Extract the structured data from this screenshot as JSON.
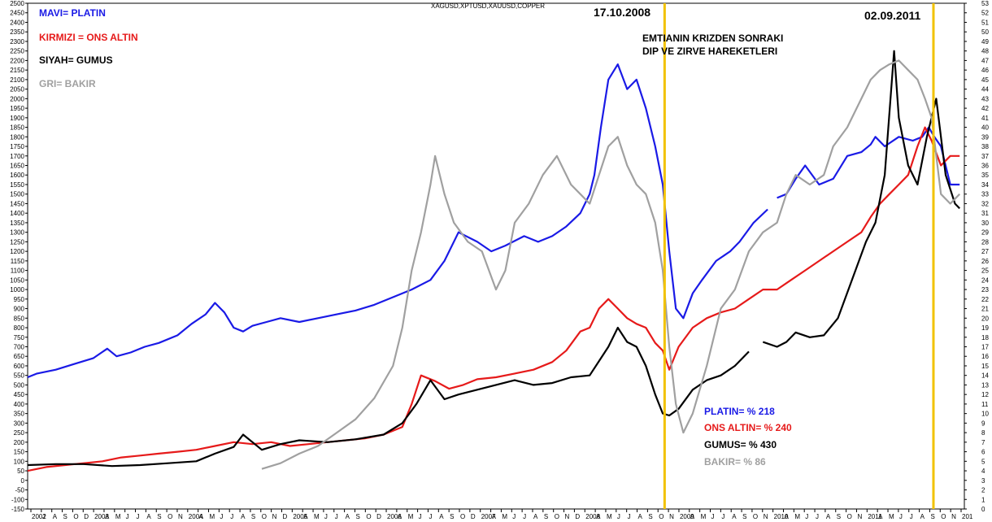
{
  "chart_data": {
    "type": "line",
    "title": "XAGUSD,XPTUSD,XAUUSD,COPPER",
    "annotations": {
      "date1": "17.10.2008",
      "date2": "02.09.2011",
      "headline_1": "EMTIANIN KRIZDEN SONRAKI",
      "headline_2": "DIP VE ZIRVE HAREKETLERI"
    },
    "legend": [
      {
        "text": "MAVI= PLATIN",
        "color": "#1a1ae6"
      },
      {
        "text": "KIRMIZI = ONS ALTIN",
        "color": "#e61a1a"
      },
      {
        "text": "SIYAH= GUMUS",
        "color": "#000000"
      },
      {
        "text": "GRI= BAKIR",
        "color": "#a0a0a0"
      }
    ],
    "performance": [
      {
        "text": "PLATIN= % 218",
        "color": "#1a1ae6"
      },
      {
        "text": "ONS ALTIN= % 240",
        "color": "#e61a1a"
      },
      {
        "text": "GUMUS= % 430",
        "color": "#000000"
      },
      {
        "text": "BAKIR= % 86",
        "color": "#a0a0a0"
      }
    ],
    "left_axis": {
      "min": -150,
      "max": 2500,
      "step": 50
    },
    "right_axis": {
      "min": 0,
      "max": 53,
      "step": 1
    },
    "x_labels": [
      "2002",
      "J",
      "A",
      "S",
      "O",
      "D",
      "2003",
      "A",
      "M",
      "J",
      "J",
      "A",
      "S",
      "O",
      "N",
      "2004",
      "A",
      "M",
      "J",
      "J",
      "A",
      "S",
      "O",
      "N",
      "D",
      "2005",
      "A",
      "M",
      "J",
      "J",
      "A",
      "S",
      "O",
      "D",
      "2006",
      "A",
      "M",
      "J",
      "J",
      "A",
      "S",
      "O",
      "D",
      "2007",
      "A",
      "M",
      "J",
      "J",
      "A",
      "S",
      "O",
      "N",
      "D",
      "2008",
      "A",
      "M",
      "J",
      "J",
      "A",
      "S",
      "O",
      "N",
      "2009",
      "A",
      "M",
      "J",
      "J",
      "A",
      "S",
      "O",
      "N",
      "2010",
      "A",
      "M",
      "J",
      "J",
      "A",
      "S",
      "O",
      "N",
      "2011",
      "A",
      "M",
      "J",
      "J",
      "A",
      "S",
      "O",
      "N",
      "201"
    ],
    "x_range": [
      2002.0,
      2012.0
    ],
    "series": [
      {
        "name": "MAVI= PLATIN",
        "color": "#1a1ae6",
        "axis": "left",
        "x": [
          2002.0,
          2002.1,
          2002.3,
          2002.5,
          2002.7,
          2002.85,
          2002.95,
          2003.1,
          2003.25,
          2003.4,
          2003.6,
          2003.75,
          2003.9,
          2004.0,
          2004.1,
          2004.2,
          2004.3,
          2004.4,
          2004.55,
          2004.7,
          2004.9,
          2005.1,
          2005.3,
          2005.5,
          2005.7,
          2005.9,
          2006.1,
          2006.3,
          2006.45,
          2006.6,
          2006.8,
          2006.95,
          2007.1,
          2007.3,
          2007.45,
          2007.6,
          2007.75,
          2007.9,
          2008.0,
          2008.05,
          2008.12,
          2008.2,
          2008.3,
          2008.4,
          2008.5,
          2008.6,
          2008.7,
          2008.78,
          2008.85,
          2008.92,
          2009.0,
          2009.1,
          2009.2,
          2009.35,
          2009.5,
          2009.6,
          2009.75,
          2009.9,
          2010.0,
          2010.1,
          2010.2,
          2010.3,
          2010.45,
          2010.6,
          2010.75,
          2010.9,
          2011.0,
          2011.05,
          2011.15,
          2011.3,
          2011.45,
          2011.55,
          2011.62,
          2011.68,
          2011.75,
          2011.85,
          2011.95
        ],
        "y": [
          540,
          560,
          580,
          610,
          640,
          690,
          650,
          670,
          700,
          720,
          760,
          820,
          870,
          930,
          880,
          800,
          780,
          810,
          830,
          850,
          830,
          850,
          870,
          890,
          920,
          960,
          1000,
          1050,
          1150,
          1300,
          1250,
          1200,
          1230,
          1280,
          1250,
          1280,
          1330,
          1400,
          1500,
          1600,
          1850,
          2100,
          2180,
          2050,
          2100,
          1950,
          1750,
          1550,
          1200,
          900,
          850,
          980,
          1050,
          1150,
          1200,
          1250,
          1350,
          1420,
          1480,
          1500,
          1580,
          1650,
          1550,
          1580,
          1700,
          1720,
          1760,
          1800,
          1750,
          1800,
          1780,
          1800,
          1850,
          1800,
          1750,
          1550,
          1550
        ],
        "gaps": [
          58
        ]
      },
      {
        "name": "KIRMIZI = ONS ALTIN",
        "color": "#e61a1a",
        "axis": "left",
        "x": [
          2002.0,
          2002.2,
          2002.4,
          2002.6,
          2002.8,
          2003.0,
          2003.2,
          2003.4,
          2003.6,
          2003.8,
          2004.0,
          2004.2,
          2004.4,
          2004.6,
          2004.8,
          2005.0,
          2005.2,
          2005.4,
          2005.6,
          2005.8,
          2006.0,
          2006.1,
          2006.2,
          2006.35,
          2006.5,
          2006.65,
          2006.8,
          2007.0,
          2007.2,
          2007.4,
          2007.6,
          2007.75,
          2007.9,
          2008.0,
          2008.1,
          2008.2,
          2008.3,
          2008.4,
          2008.5,
          2008.6,
          2008.7,
          2008.78,
          2008.85,
          2008.95,
          2009.1,
          2009.25,
          2009.4,
          2009.55,
          2009.7,
          2009.85,
          2010.0,
          2010.15,
          2010.3,
          2010.45,
          2010.6,
          2010.75,
          2010.9,
          2011.0,
          2011.1,
          2011.2,
          2011.3,
          2011.4,
          2011.5,
          2011.58,
          2011.65,
          2011.75,
          2011.85,
          2011.95
        ],
        "y": [
          50,
          70,
          80,
          90,
          100,
          120,
          130,
          140,
          150,
          160,
          180,
          200,
          190,
          200,
          180,
          190,
          200,
          210,
          220,
          240,
          280,
          400,
          550,
          520,
          480,
          500,
          530,
          540,
          560,
          580,
          620,
          680,
          780,
          800,
          900,
          950,
          900,
          850,
          820,
          800,
          720,
          680,
          580,
          700,
          800,
          850,
          880,
          900,
          950,
          1000,
          1000,
          1050,
          1100,
          1150,
          1200,
          1250,
          1300,
          1380,
          1450,
          1500,
          1550,
          1600,
          1750,
          1850,
          1780,
          1650,
          1700,
          1700
        ],
        "gaps": []
      },
      {
        "name": "SIYAH= GUMUS",
        "color": "#000000",
        "axis": "right",
        "x": [
          2002.0,
          2002.3,
          2002.6,
          2002.9,
          2003.2,
          2003.5,
          2003.8,
          2004.0,
          2004.2,
          2004.3,
          2004.5,
          2004.7,
          2004.9,
          2005.2,
          2005.5,
          2005.8,
          2006.0,
          2006.15,
          2006.3,
          2006.45,
          2006.6,
          2006.8,
          2007.0,
          2007.2,
          2007.4,
          2007.6,
          2007.8,
          2008.0,
          2008.1,
          2008.2,
          2008.3,
          2008.4,
          2008.5,
          2008.6,
          2008.7,
          2008.78,
          2008.85,
          2008.95,
          2009.1,
          2009.25,
          2009.4,
          2009.55,
          2009.7,
          2009.85,
          2010.0,
          2010.1,
          2010.2,
          2010.35,
          2010.5,
          2010.65,
          2010.8,
          2010.95,
          2011.05,
          2011.15,
          2011.25,
          2011.3,
          2011.4,
          2011.5,
          2011.6,
          2011.7,
          2011.8,
          2011.9,
          2011.95
        ],
        "y": [
          4.6,
          4.7,
          4.7,
          4.5,
          4.6,
          4.8,
          5.0,
          5.8,
          6.5,
          7.8,
          6.2,
          6.8,
          7.2,
          7.0,
          7.3,
          7.8,
          9.0,
          11.0,
          13.5,
          11.5,
          12.0,
          12.5,
          13.0,
          13.5,
          13.0,
          13.2,
          13.8,
          14.0,
          15.5,
          17.0,
          19.0,
          17.5,
          17.0,
          15.0,
          12.0,
          10.0,
          9.8,
          10.5,
          12.5,
          13.5,
          14.0,
          15.0,
          16.5,
          17.5,
          17.0,
          17.5,
          18.5,
          18.0,
          18.2,
          20.0,
          24.0,
          28.0,
          30.0,
          35.0,
          48.0,
          41.0,
          36.0,
          34.0,
          39.0,
          43.0,
          35.0,
          32.0,
          31.5
        ],
        "gaps": [
          43
        ]
      },
      {
        "name": "GRI= BAKIR",
        "color": "#a0a0a0",
        "axis": "left",
        "x": [
          2004.5,
          2004.7,
          2004.9,
          2005.1,
          2005.3,
          2005.5,
          2005.7,
          2005.9,
          2006.0,
          2006.1,
          2006.2,
          2006.3,
          2006.35,
          2006.45,
          2006.55,
          2006.7,
          2006.85,
          2007.0,
          2007.1,
          2007.2,
          2007.35,
          2007.5,
          2007.65,
          2007.8,
          2007.9,
          2008.0,
          2008.1,
          2008.2,
          2008.3,
          2008.4,
          2008.5,
          2008.6,
          2008.7,
          2008.78,
          2008.85,
          2008.92,
          2009.0,
          2009.1,
          2009.25,
          2009.4,
          2009.55,
          2009.7,
          2009.85,
          2010.0,
          2010.1,
          2010.2,
          2010.35,
          2010.5,
          2010.6,
          2010.75,
          2010.9,
          2011.0,
          2011.1,
          2011.2,
          2011.3,
          2011.4,
          2011.5,
          2011.58,
          2011.65,
          2011.75,
          2011.85,
          2011.95
        ],
        "y": [
          60,
          90,
          140,
          180,
          250,
          320,
          430,
          600,
          800,
          1100,
          1300,
          1550,
          1700,
          1500,
          1350,
          1250,
          1200,
          1000,
          1100,
          1350,
          1450,
          1600,
          1700,
          1550,
          1500,
          1450,
          1600,
          1750,
          1800,
          1650,
          1550,
          1500,
          1350,
          1100,
          700,
          400,
          250,
          350,
          600,
          900,
          1000,
          1200,
          1300,
          1350,
          1500,
          1600,
          1550,
          1600,
          1750,
          1850,
          2000,
          2100,
          2150,
          2180,
          2200,
          2150,
          2100,
          2000,
          1900,
          1500,
          1450,
          1500
        ],
        "gaps": []
      }
    ],
    "vlines": [
      {
        "x": 2008.8,
        "color": "#f2c200"
      },
      {
        "x": 2011.67,
        "color": "#f2c200"
      }
    ]
  }
}
